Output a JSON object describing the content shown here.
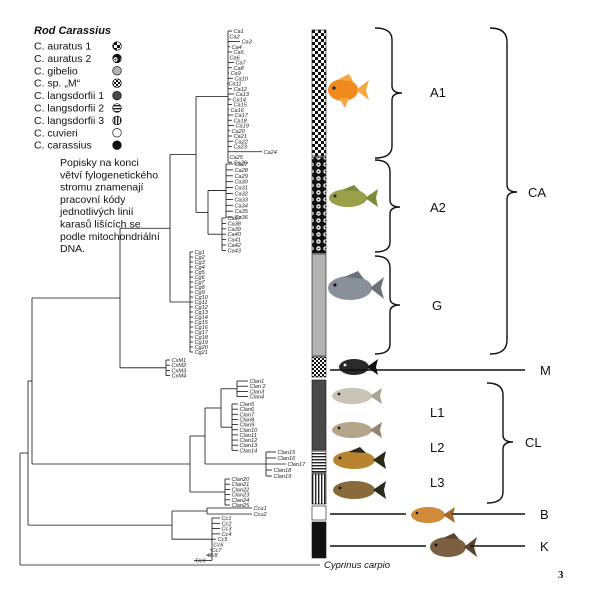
{
  "legend": {
    "title": "Rod Carassius",
    "items": [
      {
        "label": "C. auratus 1",
        "species": "C. auratus",
        "suffix": "1",
        "pattern": "checker"
      },
      {
        "label": "C. auratus 2",
        "species": "C. auratus",
        "suffix": "2",
        "pattern": "ring-dots"
      },
      {
        "label": "C. gibelio",
        "species": "C. gibelio",
        "suffix": "",
        "pattern": "gray"
      },
      {
        "label": "C. sp. „M“",
        "species": "C.",
        "suffix": "sp. „M“",
        "pattern": "checker-small"
      },
      {
        "label": "C. langsdorfii 1",
        "species": "C. langsdorfii",
        "suffix": "1",
        "pattern": "dark-gray"
      },
      {
        "label": "C. langsdorfii 2",
        "species": "C. langsdorfii",
        "suffix": "2",
        "pattern": "h-lines"
      },
      {
        "label": "C. langsdorfii 3",
        "species": "C. langsdorfii",
        "suffix": "3",
        "pattern": "v-lines"
      },
      {
        "label": "C. cuvieri",
        "species": "C. cuvieri",
        "suffix": "",
        "pattern": "white"
      },
      {
        "label": "C. carassius",
        "species": "C. carassius",
        "suffix": "",
        "pattern": "black"
      }
    ]
  },
  "description_lines": [
    "Popisky na konci",
    "větví fylogenetického",
    "stromu znamenají",
    "pracovní kódy",
    "jednotlivých linií",
    "karasů lišících se",
    "podle mitochondriální",
    "DNA."
  ],
  "tree": {
    "leaf_groups": [
      {
        "id": "ca1",
        "labels": [
          "Ca1",
          "Ca2",
          "Ca3",
          "Ca4",
          "Ca5",
          "Ca6",
          "Ca7",
          "Ca8",
          "Ca9",
          "Ca10",
          "Ca11",
          "Ca12",
          "Ca13",
          "Ca14",
          "Ca15",
          "Ca16",
          "Ca17",
          "Ca18",
          "Ca19",
          "Ca20",
          "Ca21",
          "Ca22",
          "Ca23",
          "Ca24",
          "Ca25",
          "Ca26"
        ]
      },
      {
        "id": "ca2",
        "labels": [
          "Ca27",
          "Ca28",
          "Ca29",
          "Ca30",
          "Ca31",
          "Ca32",
          "Ca33",
          "Ca34",
          "Ca35",
          "Ca36"
        ]
      },
      {
        "id": "ca3",
        "labels": [
          "Ca37",
          "Ca38",
          "Ca39",
          "Ca40",
          "Ca41",
          "Ca42",
          "Ca43"
        ]
      },
      {
        "id": "cg",
        "labels": [
          "Cg1",
          "Cg2",
          "Cg3",
          "Cg4",
          "Cg5",
          "Cg6",
          "Cg7",
          "Cg8",
          "Cg9",
          "Cg10",
          "Cg11",
          "Cg12",
          "Cg13",
          "Cg14",
          "Cg15",
          "Cg16",
          "Cg17",
          "Cg18",
          "Cg19",
          "Cg20",
          "Cg21"
        ]
      },
      {
        "id": "cxm",
        "labels": [
          "CxM1",
          "CxM2",
          "CxM3",
          "CxM4"
        ]
      },
      {
        "id": "clan1",
        "labels": [
          "Clan1",
          "Clan 2",
          "Clan3",
          "Clan4"
        ]
      },
      {
        "id": "clan2",
        "labels": [
          "Clan5",
          "Clan6",
          "Clan7",
          "Clan8",
          "Clan9",
          "Clan10",
          "Clan11",
          "Clan12",
          "Clan13",
          "Clan14"
        ]
      },
      {
        "id": "clan3",
        "labels": [
          "Clan15",
          "Clan16",
          "Clan17",
          "Clan18",
          "Clan19"
        ]
      },
      {
        "id": "clan4",
        "labels": [
          "Clan20",
          "Clan21",
          "Clan22",
          "Clan23",
          "Clan24",
          "Clan25"
        ]
      },
      {
        "id": "ccu",
        "labels": [
          "Ccu1",
          "Ccu2"
        ]
      },
      {
        "id": "cc",
        "labels": [
          "Cc1",
          "Cc2",
          "Cc3",
          "Cc4",
          "Cc5",
          "Cc6",
          "Cc7",
          "Cc8",
          "Cc9"
        ]
      }
    ],
    "outgroup_label": "Cyprinus carpio"
  },
  "clades": {
    "A1": "A1",
    "A2": "A2",
    "G": "G",
    "M": "M",
    "L1": "L1",
    "L2": "L2",
    "L3": "L3",
    "CA": "CA",
    "CL": "CL",
    "B": "B",
    "K": "K"
  },
  "figure_number": "3",
  "colors": {
    "fish_gold": "#f08a1c",
    "fish_olive": "#9aa04a",
    "fish_gray": "#8a9098",
    "fish_dark": "#2a2a2a",
    "fish_silver": "#c9c4b6",
    "fish_brown": "#b88430",
    "fish_bronze": "#8a6a3a",
    "bar_gray": "#b3b3b3",
    "bar_dark": "#4a4a4a",
    "bar_black": "#111111"
  }
}
